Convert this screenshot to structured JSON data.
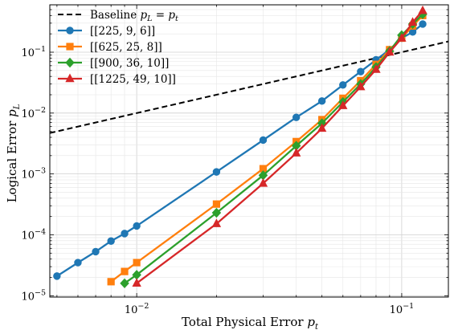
{
  "chart_data": {
    "type": "line",
    "title": "",
    "xlabel": "Total Physical Error p_t",
    "ylabel": "Logical Error p_L",
    "xscale": "log",
    "yscale": "log",
    "xlim": [
      0.0047,
      0.15
    ],
    "ylim": [
      9.5e-06,
      0.6
    ],
    "x_ticks": [
      {
        "value": 0.01,
        "label": "10",
        "exp": "−2"
      },
      {
        "value": 0.1,
        "label": "10",
        "exp": "−1"
      }
    ],
    "y_ticks": [
      {
        "value": 1e-05,
        "label": "10",
        "exp": "−5"
      },
      {
        "value": 0.0001,
        "label": "10",
        "exp": "−4"
      },
      {
        "value": 0.001,
        "label": "10",
        "exp": "−3"
      },
      {
        "value": 0.01,
        "label": "10",
        "exp": "−2"
      },
      {
        "value": 0.1,
        "label": "10",
        "exp": "−1"
      }
    ],
    "grid": true,
    "legend_position": "top-left",
    "baseline": {
      "name": "Baseline p_L = p_t",
      "color": "#000000",
      "style": "dashed",
      "x": [
        0.0047,
        0.15
      ],
      "y": [
        0.0047,
        0.15
      ]
    },
    "series": [
      {
        "name": "[[225, 9, 6]]",
        "color": "#1f77b4",
        "marker": "circle",
        "x": [
          0.005,
          0.006,
          0.007,
          0.008,
          0.009,
          0.01,
          0.02,
          0.03,
          0.04,
          0.05,
          0.06,
          0.07,
          0.08,
          0.09,
          0.1,
          0.11,
          0.12
        ],
        "y": [
          2.1e-05,
          3.5e-05,
          5.3e-05,
          7.9e-05,
          0.000105,
          0.00014,
          0.00108,
          0.0036,
          0.0085,
          0.0158,
          0.029,
          0.048,
          0.075,
          0.11,
          0.17,
          0.215,
          0.29
        ]
      },
      {
        "name": "[[625, 25, 8]]",
        "color": "#ff7f0e",
        "marker": "square",
        "x": [
          0.008,
          0.009,
          0.01,
          0.02,
          0.03,
          0.04,
          0.05,
          0.06,
          0.07,
          0.08,
          0.09,
          0.1,
          0.11,
          0.12
        ],
        "y": [
          1.7e-05,
          2.5e-05,
          3.5e-05,
          0.00032,
          0.00122,
          0.0034,
          0.0078,
          0.0175,
          0.034,
          0.063,
          0.11,
          0.17,
          0.27,
          0.4
        ]
      },
      {
        "name": "[[900, 36, 10]]",
        "color": "#2ca02c",
        "marker": "diamond",
        "x": [
          0.009,
          0.01,
          0.02,
          0.03,
          0.04,
          0.05,
          0.06,
          0.07,
          0.08,
          0.09,
          0.1,
          0.11,
          0.12
        ],
        "y": [
          1.6e-05,
          2.2e-05,
          0.00023,
          0.00095,
          0.0029,
          0.0068,
          0.0152,
          0.03,
          0.057,
          0.104,
          0.19,
          0.29,
          0.42
        ]
      },
      {
        "name": "[[1225, 49, 10]]",
        "color": "#d62728",
        "marker": "triangle",
        "x": [
          0.01,
          0.02,
          0.03,
          0.04,
          0.05,
          0.06,
          0.07,
          0.08,
          0.09,
          0.1,
          0.11,
          0.12
        ],
        "y": [
          1.6e-05,
          0.000152,
          0.0007,
          0.0022,
          0.0056,
          0.0132,
          0.027,
          0.052,
          0.1,
          0.17,
          0.31,
          0.48
        ]
      }
    ]
  }
}
